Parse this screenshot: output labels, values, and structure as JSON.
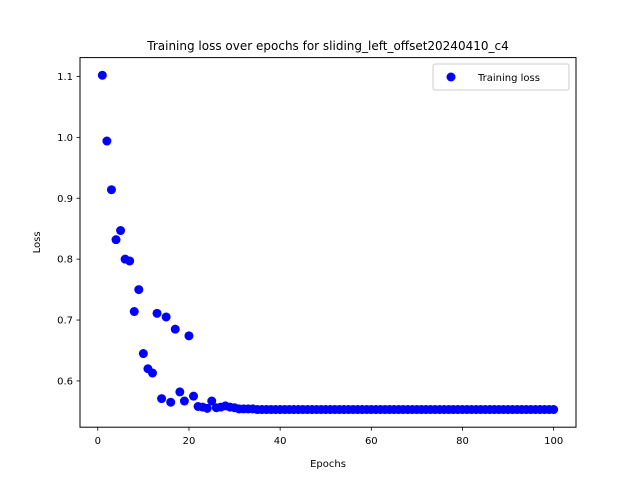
{
  "chart_data": {
    "type": "scatter",
    "title": "Training loss over epochs for sliding_left_offset20240410_c4",
    "xlabel": "Epochs",
    "ylabel": "Loss",
    "xlim": [
      -3.9,
      104.9
    ],
    "ylim": [
      0.524,
      1.131
    ],
    "xticks": [
      0,
      20,
      40,
      60,
      80,
      100
    ],
    "yticks": [
      0.6,
      0.7,
      0.8,
      0.9,
      1.0,
      1.1
    ],
    "xtick_labels": [
      "0",
      "20",
      "40",
      "60",
      "80",
      "100"
    ],
    "ytick_labels": [
      "0.6",
      "0.7",
      "0.8",
      "0.9",
      "1.0",
      "1.1"
    ],
    "legend_position": "top-right",
    "grid": false,
    "series": [
      {
        "name": "Training loss",
        "color": "#0000ff",
        "marker": "circle",
        "x": [
          1,
          2,
          3,
          4,
          5,
          6,
          7,
          8,
          9,
          10,
          11,
          12,
          13,
          14,
          15,
          16,
          17,
          18,
          19,
          20,
          21,
          22,
          23,
          24,
          25,
          26,
          27,
          28,
          29,
          30,
          31,
          32,
          33,
          34,
          35,
          36,
          37,
          38,
          39,
          40,
          41,
          42,
          43,
          44,
          45,
          46,
          47,
          48,
          49,
          50,
          51,
          52,
          53,
          54,
          55,
          56,
          57,
          58,
          59,
          60,
          61,
          62,
          63,
          64,
          65,
          66,
          67,
          68,
          69,
          70,
          71,
          72,
          73,
          74,
          75,
          76,
          77,
          78,
          79,
          80,
          81,
          82,
          83,
          84,
          85,
          86,
          87,
          88,
          89,
          90,
          91,
          92,
          93,
          94,
          95,
          96,
          97,
          98,
          99,
          100
        ],
        "y": [
          1.102,
          0.994,
          0.914,
          0.832,
          0.847,
          0.8,
          0.797,
          0.714,
          0.75,
          0.645,
          0.62,
          0.613,
          0.711,
          0.571,
          0.705,
          0.565,
          0.685,
          0.582,
          0.567,
          0.674,
          0.575,
          0.558,
          0.557,
          0.555,
          0.567,
          0.556,
          0.557,
          0.559,
          0.557,
          0.556,
          0.554,
          0.554,
          0.554,
          0.554,
          0.553,
          0.553,
          0.553,
          0.553,
          0.553,
          0.553,
          0.553,
          0.553,
          0.553,
          0.553,
          0.553,
          0.553,
          0.553,
          0.553,
          0.553,
          0.553,
          0.553,
          0.553,
          0.553,
          0.553,
          0.553,
          0.553,
          0.553,
          0.553,
          0.553,
          0.553,
          0.553,
          0.553,
          0.553,
          0.553,
          0.553,
          0.553,
          0.553,
          0.553,
          0.553,
          0.553,
          0.553,
          0.553,
          0.553,
          0.553,
          0.553,
          0.553,
          0.553,
          0.553,
          0.553,
          0.553,
          0.553,
          0.553,
          0.553,
          0.553,
          0.553,
          0.553,
          0.553,
          0.553,
          0.553,
          0.553,
          0.553,
          0.553,
          0.553,
          0.553,
          0.553,
          0.553,
          0.553,
          0.553,
          0.553,
          0.553
        ]
      }
    ]
  }
}
